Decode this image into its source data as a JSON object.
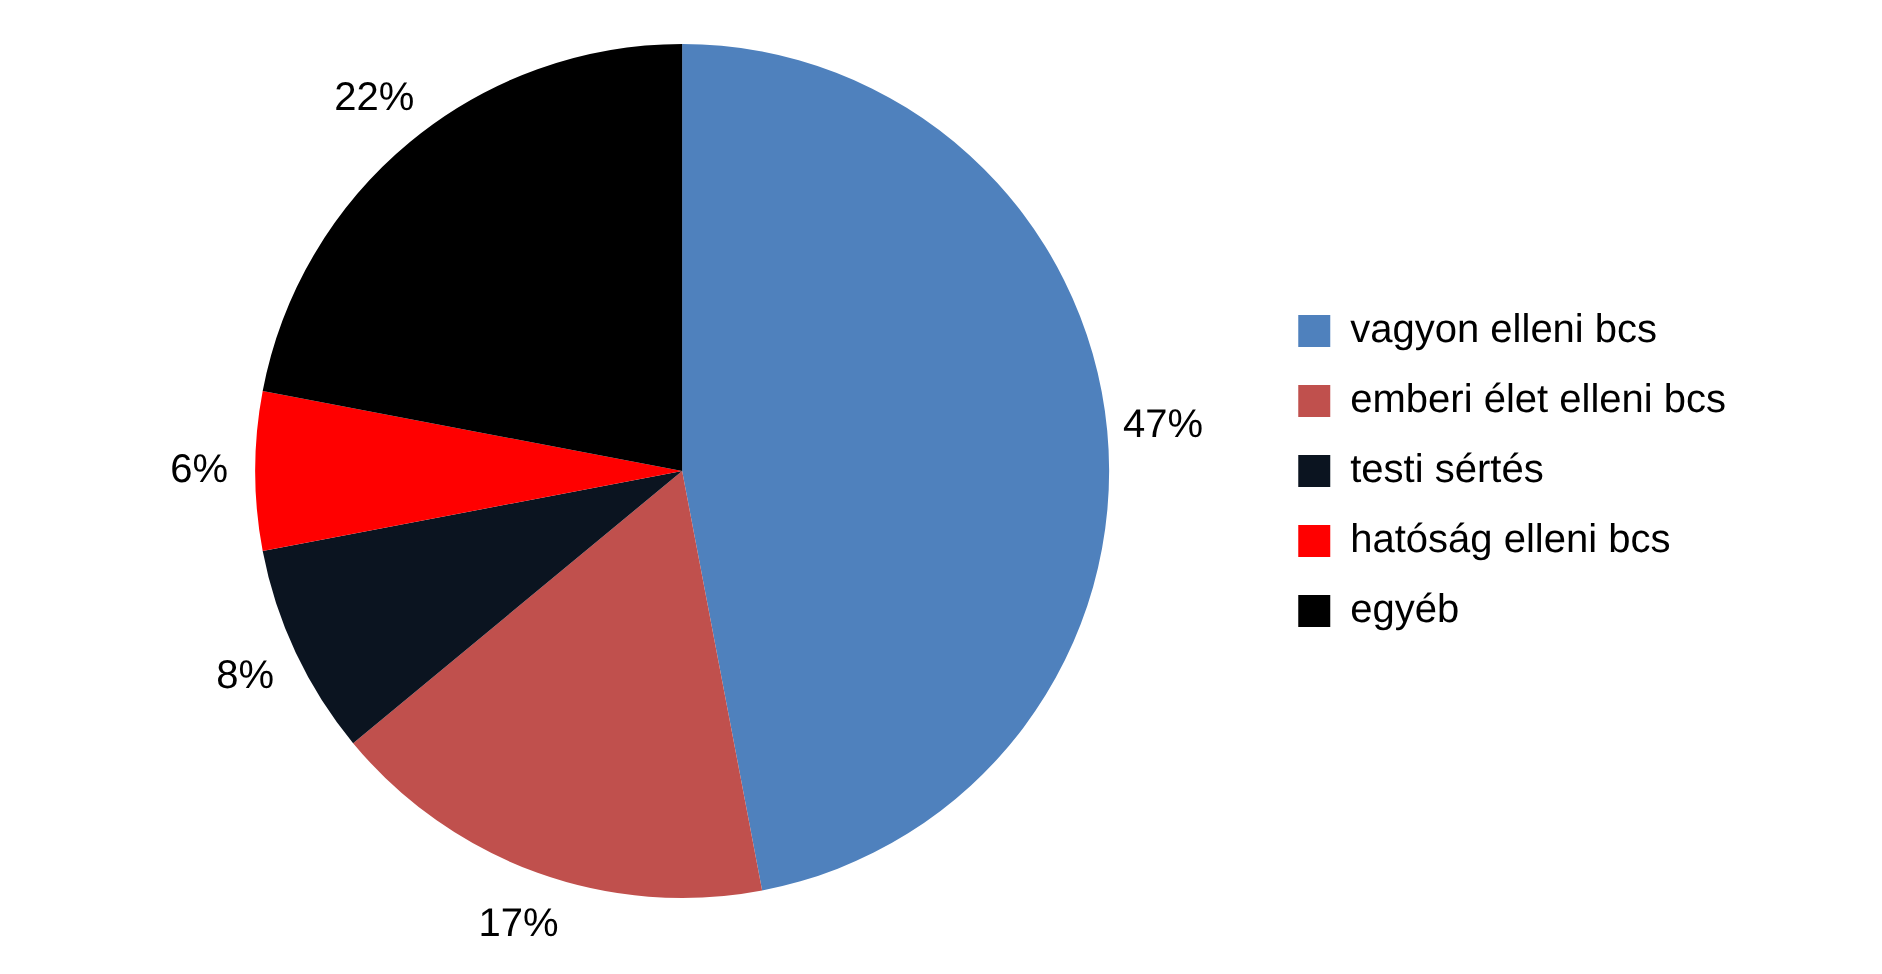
{
  "chart_data": {
    "type": "pie",
    "categories": [
      "vagyon elleni bcs",
      "emberi élet elleni bcs",
      "testi sértés",
      "hatóság elleni bcs",
      "egyéb"
    ],
    "values": [
      47,
      17,
      8,
      6,
      22
    ],
    "colors": [
      "#4f81bd",
      "#c0504d",
      "#0b1420",
      "#ff0000",
      "#000000"
    ],
    "value_labels": [
      "47%",
      "17%",
      "8%",
      "6%",
      "22%"
    ],
    "legend": "right"
  }
}
